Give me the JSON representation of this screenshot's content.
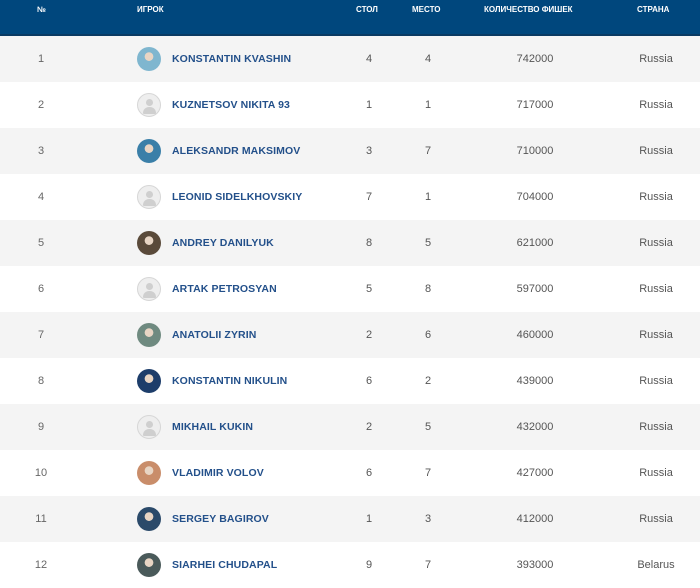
{
  "header": {
    "num": "№",
    "player": "ИГРОК",
    "table": "СТОЛ",
    "seat": "МЕСТО",
    "chips": "КОЛИЧЕСТВО ФИШЕК",
    "country": "СТРАНА"
  },
  "colors": {
    "header_bg": "#00477d",
    "name": "#23508a",
    "alt_row": "#f4f4f4"
  },
  "rows": [
    {
      "num": "1",
      "name": "KONSTANTIN KVASHIN",
      "table": "4",
      "seat": "4",
      "chips": "742000",
      "country": "Russia",
      "photo": true,
      "tone": "#7fb6cf"
    },
    {
      "num": "2",
      "name": "KUZNETSOV NIKITA 93",
      "table": "1",
      "seat": "1",
      "chips": "717000",
      "country": "Russia",
      "photo": false
    },
    {
      "num": "3",
      "name": "ALEKSANDR MAKSIMOV",
      "table": "3",
      "seat": "7",
      "chips": "710000",
      "country": "Russia",
      "photo": true,
      "tone": "#3a7fa8"
    },
    {
      "num": "4",
      "name": "LEONID SIDELKHOVSKIY",
      "table": "7",
      "seat": "1",
      "chips": "704000",
      "country": "Russia",
      "photo": false
    },
    {
      "num": "5",
      "name": "ANDREY DANILYUK",
      "table": "8",
      "seat": "5",
      "chips": "621000",
      "country": "Russia",
      "photo": true,
      "tone": "#5a4a3a"
    },
    {
      "num": "6",
      "name": "ARTAK PETROSYAN",
      "table": "5",
      "seat": "8",
      "chips": "597000",
      "country": "Russia",
      "photo": false
    },
    {
      "num": "7",
      "name": "ANATOLII ZYRIN",
      "table": "2",
      "seat": "6",
      "chips": "460000",
      "country": "Russia",
      "photo": true,
      "tone": "#6f8a80"
    },
    {
      "num": "8",
      "name": "KONSTANTIN NIKULIN",
      "table": "6",
      "seat": "2",
      "chips": "439000",
      "country": "Russia",
      "photo": true,
      "tone": "#1d3d6a"
    },
    {
      "num": "9",
      "name": "MIKHAIL KUKIN",
      "table": "2",
      "seat": "5",
      "chips": "432000",
      "country": "Russia",
      "photo": false
    },
    {
      "num": "10",
      "name": "VLADIMIR VOLOV",
      "table": "6",
      "seat": "7",
      "chips": "427000",
      "country": "Russia",
      "photo": true,
      "tone": "#c98d6a"
    },
    {
      "num": "11",
      "name": "SERGEY BAGIROV",
      "table": "1",
      "seat": "3",
      "chips": "412000",
      "country": "Russia",
      "photo": true,
      "tone": "#2b4a6a"
    },
    {
      "num": "12",
      "name": "SIARHEI CHUDAPAL",
      "table": "9",
      "seat": "7",
      "chips": "393000",
      "country": "Belarus",
      "photo": true,
      "tone": "#4a5a5a"
    }
  ]
}
